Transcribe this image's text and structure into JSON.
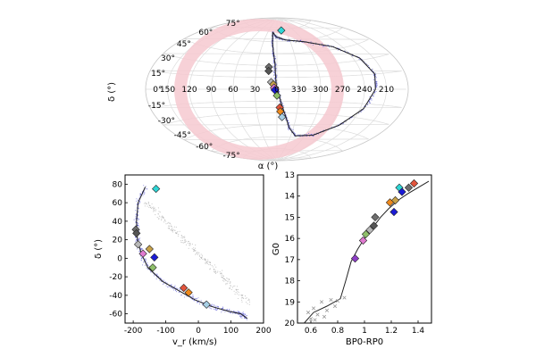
{
  "colors": {
    "stream_points": "#5b5bd6",
    "background_points": "#9a9a9a",
    "model_line": "#222222",
    "disk_band": "#f6c9d0",
    "grid": "#dcdcdc",
    "frame": "#000000"
  },
  "chart_data": [
    {
      "id": "sky",
      "type": "scatter",
      "projection": "aitoff",
      "xlabel": "α (°)",
      "ylabel": "δ (°)",
      "ra_tick_labels": [
        "150",
        "120",
        "90",
        "60",
        "30",
        "0",
        "330",
        "300",
        "270",
        "240",
        "210"
      ],
      "dec_tick_labels": [
        "75°",
        "60°",
        "45°",
        "30°",
        "15°",
        "0°",
        "-15°",
        "-30°",
        "-45°",
        "-60°",
        "-75°"
      ],
      "model_track": [
        {
          "ra": 14,
          "dec": 72
        },
        {
          "ra": 10,
          "dec": 60
        },
        {
          "ra": 6,
          "dec": 45
        },
        {
          "ra": 3,
          "dec": 32
        },
        {
          "ra": 2,
          "dec": 18
        },
        {
          "ra": 1,
          "dec": 5
        },
        {
          "ra": 358,
          "dec": -5
        },
        {
          "ra": 353,
          "dec": -20
        },
        {
          "ra": 346,
          "dec": -35
        },
        {
          "ra": 338,
          "dec": -48
        },
        {
          "ra": 320,
          "dec": -58
        },
        {
          "ra": 285,
          "dec": -55
        },
        {
          "ra": 255,
          "dec": -40
        },
        {
          "ra": 235,
          "dec": -20
        },
        {
          "ra": 225,
          "dec": 0
        },
        {
          "ra": 222,
          "dec": 15
        },
        {
          "ra": 230,
          "dec": 32
        },
        {
          "ra": 255,
          "dec": 48
        },
        {
          "ra": 300,
          "dec": 58
        },
        {
          "ra": 340,
          "dec": 62
        },
        {
          "ra": 2,
          "dec": 66
        },
        {
          "ra": 14,
          "dec": 72
        }
      ],
      "markers": [
        {
          "ra": 344,
          "dec": 74,
          "color": "#2fd6d6"
        },
        {
          "ra": 12,
          "dec": 28,
          "color": "#6e6e6e"
        },
        {
          "ra": 12,
          "dec": 23,
          "color": "#555555"
        },
        {
          "ra": 8,
          "dec": 9,
          "color": "#b8b8b8"
        },
        {
          "ra": 5,
          "dec": 6,
          "color": "#c8a24a"
        },
        {
          "ra": 4,
          "dec": 2,
          "color": "#e07ad0"
        },
        {
          "ra": 3,
          "dec": -1,
          "color": "#1b1bd6"
        },
        {
          "ra": 0,
          "dec": -8,
          "color": "#8fbf6a"
        },
        {
          "ra": 356,
          "dec": -23,
          "color": "#e2543c"
        },
        {
          "ra": 355,
          "dec": -28,
          "color": "#f08a1c"
        },
        {
          "ra": 352,
          "dec": -35,
          "color": "#a8d0e6"
        }
      ]
    },
    {
      "id": "velocity",
      "type": "scatter",
      "xlabel": "v_r (km/s)",
      "ylabel": "δ (°)",
      "xlim": [
        -225,
        200
      ],
      "ylim": [
        -70,
        90
      ],
      "xticks": [
        -200,
        -100,
        0,
        100,
        200
      ],
      "yticks": [
        -60,
        -40,
        -20,
        0,
        20,
        40,
        60,
        80
      ],
      "model_track": [
        {
          "x": -163,
          "y": 77
        },
        {
          "x": -185,
          "y": 60
        },
        {
          "x": -190,
          "y": 40
        },
        {
          "x": -187,
          "y": 20
        },
        {
          "x": -175,
          "y": 5
        },
        {
          "x": -155,
          "y": -10
        },
        {
          "x": -110,
          "y": -25
        },
        {
          "x": -60,
          "y": -35
        },
        {
          "x": -10,
          "y": -45
        },
        {
          "x": 40,
          "y": -52
        },
        {
          "x": 90,
          "y": -57
        },
        {
          "x": 130,
          "y": -60
        },
        {
          "x": 150,
          "y": -65
        }
      ],
      "markers": [
        {
          "x": -130,
          "y": 75,
          "color": "#2fd6d6"
        },
        {
          "x": -192,
          "y": 31,
          "color": "#6e6e6e"
        },
        {
          "x": -190,
          "y": 27,
          "color": "#555555"
        },
        {
          "x": -185,
          "y": 15,
          "color": "#b8b8b8"
        },
        {
          "x": -150,
          "y": 10,
          "color": "#c8a24a"
        },
        {
          "x": -170,
          "y": 5,
          "color": "#e07ad0"
        },
        {
          "x": -135,
          "y": 1,
          "color": "#1b1bd6"
        },
        {
          "x": -140,
          "y": -10,
          "color": "#8fbf6a"
        },
        {
          "x": -45,
          "y": -32,
          "color": "#e2543c"
        },
        {
          "x": -30,
          "y": -37,
          "color": "#f08a1c"
        },
        {
          "x": 25,
          "y": -50,
          "color": "#a8d0e6"
        }
      ]
    },
    {
      "id": "cmd",
      "type": "scatter",
      "xlabel": "BP0-RP0",
      "ylabel": "G0",
      "xlim": [
        0.5,
        1.5
      ],
      "ylim": [
        20,
        13
      ],
      "xticks": [
        0.6,
        0.8,
        1.0,
        1.2,
        1.4
      ],
      "yticks": [
        13,
        14,
        15,
        16,
        17,
        18,
        19,
        20
      ],
      "isochrone": [
        {
          "x": 0.55,
          "y": 20
        },
        {
          "x": 0.62,
          "y": 19.5
        },
        {
          "x": 0.72,
          "y": 19.2
        },
        {
          "x": 0.82,
          "y": 18.85
        },
        {
          "x": 0.86,
          "y": 18.0
        },
        {
          "x": 0.9,
          "y": 17.1
        },
        {
          "x": 0.95,
          "y": 16.5
        },
        {
          "x": 1.0,
          "y": 16.0
        },
        {
          "x": 1.06,
          "y": 15.5
        },
        {
          "x": 1.12,
          "y": 15.0
        },
        {
          "x": 1.18,
          "y": 14.6
        },
        {
          "x": 1.25,
          "y": 14.2
        },
        {
          "x": 1.32,
          "y": 13.9
        },
        {
          "x": 1.4,
          "y": 13.6
        },
        {
          "x": 1.48,
          "y": 13.3
        }
      ],
      "excluded_stars": [
        {
          "x": 0.58,
          "y": 19.5
        },
        {
          "x": 0.6,
          "y": 19.8
        },
        {
          "x": 0.62,
          "y": 19.3
        },
        {
          "x": 0.65,
          "y": 19.6
        },
        {
          "x": 0.68,
          "y": 19.0
        },
        {
          "x": 0.72,
          "y": 19.4
        },
        {
          "x": 0.75,
          "y": 18.9
        },
        {
          "x": 0.78,
          "y": 19.2
        },
        {
          "x": 0.8,
          "y": 18.95
        },
        {
          "x": 0.63,
          "y": 19.85
        },
        {
          "x": 0.7,
          "y": 19.7
        },
        {
          "x": 0.85,
          "y": 18.8
        }
      ],
      "markers": [
        {
          "x": 1.37,
          "y": 13.4,
          "color": "#e2543c"
        },
        {
          "x": 1.33,
          "y": 13.6,
          "color": "#6e6e6e"
        },
        {
          "x": 1.26,
          "y": 13.6,
          "color": "#2fd6d6"
        },
        {
          "x": 1.28,
          "y": 13.8,
          "color": "#1b1bd6"
        },
        {
          "x": 1.23,
          "y": 14.2,
          "color": "#c8a24a"
        },
        {
          "x": 1.19,
          "y": 14.3,
          "color": "#f08a1c"
        },
        {
          "x": 1.22,
          "y": 14.75,
          "color": "#1b1bd6"
        },
        {
          "x": 1.08,
          "y": 15.0,
          "color": "#6e6e6e"
        },
        {
          "x": 1.07,
          "y": 15.4,
          "color": "#555555"
        },
        {
          "x": 1.04,
          "y": 15.6,
          "color": "#b8b8b8"
        },
        {
          "x": 1.01,
          "y": 15.8,
          "color": "#8fbf6a"
        },
        {
          "x": 0.99,
          "y": 16.1,
          "color": "#e07ad0"
        },
        {
          "x": 0.93,
          "y": 16.95,
          "color": "#8e3ec7"
        }
      ]
    }
  ]
}
